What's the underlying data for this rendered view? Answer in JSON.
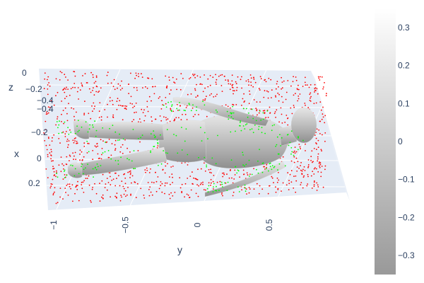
{
  "chart_data": {
    "type": "scatter3d",
    "title": "",
    "axes": {
      "x": {
        "title": "x",
        "ticks": [
          "−0.4",
          "−0.4",
          "−0.2",
          "0",
          "0.2"
        ]
      },
      "y": {
        "title": "y",
        "ticks": [
          "−1",
          "−0.5",
          "0",
          "0.5"
        ],
        "range": [
          -1.05,
          0.75
        ]
      },
      "z": {
        "title": "z",
        "ticks": [
          "0",
          "−0.2"
        ]
      }
    },
    "series": [
      {
        "type": "mesh",
        "color": "#bfbfbf",
        "description_shape": "human-body"
      },
      {
        "type": "points",
        "color": "#ff0000",
        "count": 1400
      },
      {
        "type": "points",
        "color": "#00ff00",
        "count": 260
      }
    ],
    "colorbar": {
      "ticks": [
        "0.3",
        "0.2",
        "0.1",
        "0",
        "−0.1",
        "−0.2",
        "−0.3"
      ],
      "tick_values": [
        0.3,
        0.2,
        0.1,
        0,
        -0.1,
        -0.2,
        -0.3
      ],
      "range": [
        -0.35,
        0.35
      ],
      "colorscale": [
        "#999999",
        "#ffffff"
      ]
    },
    "scene": {
      "background": "#e5ecf6",
      "grid": true
    }
  }
}
